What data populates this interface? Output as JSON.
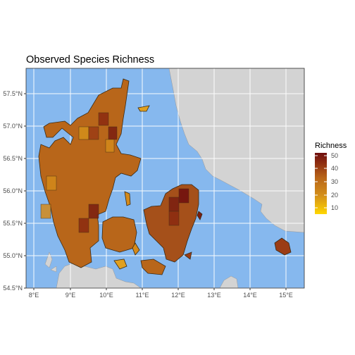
{
  "title": "Observed Species Richness",
  "legend": {
    "title": "Richness",
    "ticks": [
      "50",
      "40",
      "30",
      "20",
      "10"
    ],
    "colors": [
      "#ffd700",
      "#d4901a",
      "#b86418",
      "#8b2a10",
      "#6e0e0e"
    ]
  },
  "x_ticks": [
    "8°E",
    "9°E",
    "10°E",
    "11°E",
    "12°E",
    "13°E",
    "14°E",
    "15°E"
  ],
  "y_ticks": [
    "57.5°N",
    "57.0°N",
    "56.5°N",
    "56.0°N",
    "55.5°N",
    "55.0°N",
    "54.5°N"
  ],
  "colors": {
    "sea": "#86b8ee",
    "land": "#d3d3d3",
    "grid": "#ffffff",
    "cell_border": "#3a2a15"
  }
}
